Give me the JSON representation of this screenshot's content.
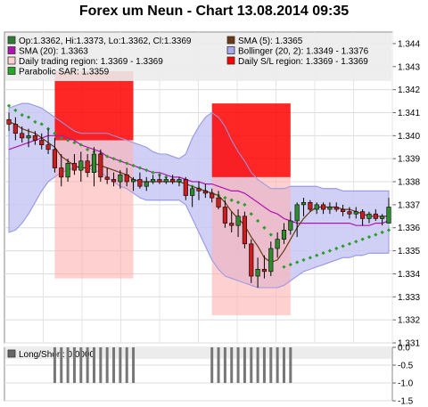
{
  "title": "Forex um Neun - Chart 13.08.2014 09:35",
  "legend": [
    {
      "label": "Op:1.3362, Hi:1.3373, Lo:1.3362, Cl:1.3369",
      "color": "#2e7d32",
      "type": "box"
    },
    {
      "label": "SMA (5): 1.3365",
      "color": "#6b3a14",
      "type": "box"
    },
    {
      "label": "SMA (20): 1.3363",
      "color": "#b014b0",
      "type": "box"
    },
    {
      "label": "Bollinger (20, 2): 1.3349 - 1.3376",
      "color": "#aaaaee",
      "type": "box"
    },
    {
      "label": "Daily trading region: 1.3369 - 1.3369",
      "color": "#ffd0d0",
      "type": "box"
    },
    {
      "label": "Daily S/L region: 1.3369 - 1.3369",
      "color": "#ff0000",
      "type": "box"
    },
    {
      "label": "Parabolic SAR: 1.3359",
      "color": "#22aa22",
      "type": "box"
    }
  ],
  "sub_legend": {
    "label": "Long/Short: 0.0000",
    "color": "#666666"
  },
  "chart_data": [
    {
      "type": "candlestick",
      "title": "Forex um Neun - Chart 13.08.2014 09:35",
      "ylim": [
        1.331,
        1.3445
      ],
      "yticks": [
        "1.344",
        "1.343",
        "1.342",
        "1.341",
        "1.340",
        "1.339",
        "1.338",
        "1.337",
        "1.336",
        "1.335",
        "1.334",
        "1.333",
        "1.332",
        "1.331"
      ],
      "ohlc": [
        [
          1.3407,
          1.341,
          1.3402,
          1.3405
        ],
        [
          1.3405,
          1.3408,
          1.3398,
          1.3401
        ],
        [
          1.3401,
          1.3404,
          1.3397,
          1.3399
        ],
        [
          1.3399,
          1.3403,
          1.3395,
          1.34
        ],
        [
          1.34,
          1.3402,
          1.3396,
          1.3398
        ],
        [
          1.3398,
          1.3401,
          1.3394,
          1.3396
        ],
        [
          1.3396,
          1.3403,
          1.3392,
          1.3394
        ],
        [
          1.3394,
          1.3399,
          1.3384,
          1.3386
        ],
        [
          1.3386,
          1.3392,
          1.3378,
          1.3382
        ],
        [
          1.3382,
          1.339,
          1.338,
          1.3388
        ],
        [
          1.3388,
          1.3392,
          1.3383,
          1.3385
        ],
        [
          1.3385,
          1.3393,
          1.338,
          1.3389
        ],
        [
          1.3389,
          1.3392,
          1.3382,
          1.3384
        ],
        [
          1.3384,
          1.3395,
          1.3378,
          1.3392
        ],
        [
          1.3392,
          1.3394,
          1.338,
          1.3382
        ],
        [
          1.3382,
          1.3386,
          1.3379,
          1.3381
        ],
        [
          1.3381,
          1.3384,
          1.3378,
          1.338
        ],
        [
          1.338,
          1.3385,
          1.3377,
          1.3383
        ],
        [
          1.3383,
          1.3386,
          1.3378,
          1.338
        ],
        [
          1.338,
          1.3382,
          1.3376,
          1.3381
        ],
        [
          1.3381,
          1.3384,
          1.3377,
          1.3378
        ],
        [
          1.3378,
          1.3382,
          1.3376,
          1.338
        ],
        [
          1.338,
          1.3383,
          1.3379,
          1.3381
        ],
        [
          1.3381,
          1.3383,
          1.3379,
          1.338
        ],
        [
          1.338,
          1.3382,
          1.3379,
          1.3381
        ],
        [
          1.3381,
          1.3383,
          1.3379,
          1.338
        ],
        [
          1.338,
          1.3382,
          1.3378,
          1.3381
        ],
        [
          1.3381,
          1.3382,
          1.3372,
          1.3374
        ],
        [
          1.3374,
          1.3378,
          1.3369,
          1.3377
        ],
        [
          1.3377,
          1.338,
          1.3372,
          1.3376
        ],
        [
          1.3376,
          1.3379,
          1.3373,
          1.3375
        ],
        [
          1.3375,
          1.3377,
          1.3371,
          1.3373
        ],
        [
          1.3373,
          1.3376,
          1.3368,
          1.3369
        ],
        [
          1.3369,
          1.3372,
          1.336,
          1.3362
        ],
        [
          1.3362,
          1.3367,
          1.3358,
          1.3361
        ],
        [
          1.3361,
          1.3368,
          1.3356,
          1.3365
        ],
        [
          1.3365,
          1.3367,
          1.3351,
          1.3353
        ],
        [
          1.3353,
          1.3355,
          1.3336,
          1.3339
        ],
        [
          1.3339,
          1.3347,
          1.3334,
          1.3342
        ],
        [
          1.3342,
          1.3348,
          1.3338,
          1.3341
        ],
        [
          1.3341,
          1.3354,
          1.3339,
          1.3351
        ],
        [
          1.3351,
          1.3358,
          1.3347,
          1.3355
        ],
        [
          1.3355,
          1.3362,
          1.3353,
          1.3359
        ],
        [
          1.3359,
          1.3367,
          1.3357,
          1.3363
        ],
        [
          1.3363,
          1.3371,
          1.3356,
          1.337
        ],
        [
          1.337,
          1.3373,
          1.3365,
          1.3371
        ],
        [
          1.3371,
          1.3372,
          1.3367,
          1.3368
        ],
        [
          1.3368,
          1.3371,
          1.3366,
          1.337
        ],
        [
          1.337,
          1.3371,
          1.3366,
          1.3368
        ],
        [
          1.3368,
          1.3371,
          1.3366,
          1.3369
        ],
        [
          1.3369,
          1.3371,
          1.3367,
          1.3368
        ],
        [
          1.3368,
          1.337,
          1.3365,
          1.3367
        ],
        [
          1.3367,
          1.3369,
          1.3364,
          1.3366
        ],
        [
          1.3366,
          1.3369,
          1.3364,
          1.3367
        ],
        [
          1.3367,
          1.3368,
          1.3361,
          1.3364
        ],
        [
          1.3364,
          1.3367,
          1.3362,
          1.3366
        ],
        [
          1.3366,
          1.3368,
          1.3363,
          1.3364
        ],
        [
          1.3364,
          1.3366,
          1.3361,
          1.3365
        ],
        [
          1.3362,
          1.3373,
          1.3362,
          1.3369
        ]
      ],
      "sma5": [
        1.3406,
        1.3405,
        1.3403,
        1.3402,
        1.3401,
        1.3399,
        1.3397,
        1.3395,
        1.3391,
        1.3389,
        1.3387,
        1.3386,
        1.3386,
        1.3388,
        1.3387,
        1.3386,
        1.3385,
        1.3384,
        1.3383,
        1.3381,
        1.338,
        1.338,
        1.338,
        1.338,
        1.338,
        1.338,
        1.338,
        1.3379,
        1.3378,
        1.3377,
        1.3376,
        1.3375,
        1.3374,
        1.3371,
        1.3367,
        1.3364,
        1.3361,
        1.3356,
        1.3352,
        1.3347,
        1.3345,
        1.3346,
        1.335,
        1.3355,
        1.336,
        1.3364,
        1.3367,
        1.3369,
        1.3369,
        1.3369,
        1.3369,
        1.3368,
        1.3368,
        1.3367,
        1.3366,
        1.3365,
        1.3365,
        1.3365,
        1.3365
      ],
      "sma20": [
        1.3394,
        1.3395,
        1.3396,
        1.3397,
        1.3398,
        1.3399,
        1.34,
        1.34,
        1.34,
        1.3399,
        1.3398,
        1.3396,
        1.3395,
        1.3394,
        1.3393,
        1.3391,
        1.339,
        1.3389,
        1.3388,
        1.3387,
        1.3386,
        1.3385,
        1.3384,
        1.3384,
        1.3383,
        1.3382,
        1.3382,
        1.3381,
        1.338,
        1.338,
        1.3379,
        1.3379,
        1.3378,
        1.3377,
        1.3376,
        1.3376,
        1.3375,
        1.3373,
        1.3371,
        1.3369,
        1.3367,
        1.3366,
        1.3364,
        1.3363,
        1.3362,
        1.3362,
        1.3362,
        1.3362,
        1.3362,
        1.3362,
        1.3362,
        1.3362,
        1.3362,
        1.3361,
        1.3361,
        1.3361,
        1.3362,
        1.3362,
        1.3363
      ],
      "boll_upper": [
        1.3412,
        1.3413,
        1.3414,
        1.3414,
        1.3413,
        1.3412,
        1.341,
        1.3408,
        1.3406,
        1.3404,
        1.3402,
        1.3401,
        1.3401,
        1.3401,
        1.3401,
        1.3401,
        1.34,
        1.3399,
        1.3398,
        1.3397,
        1.3396,
        1.3395,
        1.3393,
        1.3392,
        1.3392,
        1.3391,
        1.339,
        1.3392,
        1.3399,
        1.3404,
        1.3408,
        1.341,
        1.3408,
        1.3404,
        1.3398,
        1.3393,
        1.3389,
        1.3384,
        1.3381,
        1.3379,
        1.3377,
        1.3377,
        1.3377,
        1.3378,
        1.3378,
        1.3378,
        1.3378,
        1.3378,
        1.3377,
        1.3377,
        1.3377,
        1.3376,
        1.3376,
        1.3376,
        1.3376,
        1.3376,
        1.3376,
        1.3376,
        1.3376
      ],
      "boll_lower": [
        1.3358,
        1.3359,
        1.3362,
        1.3366,
        1.3371,
        1.3376,
        1.338,
        1.3382,
        1.3384,
        1.3385,
        1.3386,
        1.3386,
        1.3386,
        1.3385,
        1.3384,
        1.3382,
        1.338,
        1.3378,
        1.3377,
        1.3375,
        1.3373,
        1.3372,
        1.3372,
        1.3372,
        1.3372,
        1.3372,
        1.3372,
        1.337,
        1.3364,
        1.3358,
        1.3352,
        1.3346,
        1.3342,
        1.3339,
        1.3338,
        1.3337,
        1.3336,
        1.3335,
        1.3334,
        1.3334,
        1.3334,
        1.3334,
        1.3335,
        1.3337,
        1.3339,
        1.3341,
        1.3342,
        1.3343,
        1.3344,
        1.3345,
        1.3346,
        1.3347,
        1.3347,
        1.3348,
        1.3348,
        1.3349,
        1.3349,
        1.3349,
        1.3349
      ],
      "sar_dots": [
        [
          0,
          1.3413
        ],
        [
          1,
          1.3411
        ],
        [
          2,
          1.3409
        ],
        [
          3,
          1.3408
        ],
        [
          4,
          1.3406
        ],
        [
          5,
          1.3405
        ],
        [
          6,
          1.3403
        ],
        [
          7,
          1.3401
        ],
        [
          8,
          1.3399
        ],
        [
          9,
          1.3398
        ],
        [
          10,
          1.3397
        ],
        [
          11,
          1.3396
        ],
        [
          12,
          1.3394
        ],
        [
          13,
          1.3393
        ],
        [
          14,
          1.3392
        ],
        [
          15,
          1.3391
        ],
        [
          16,
          1.339
        ],
        [
          17,
          1.3389
        ],
        [
          18,
          1.3388
        ],
        [
          19,
          1.3387
        ],
        [
          20,
          1.3386
        ],
        [
          21,
          1.3385
        ],
        [
          22,
          1.3384
        ],
        [
          23,
          1.3383
        ],
        [
          24,
          1.3382
        ],
        [
          25,
          1.3381
        ],
        [
          26,
          1.338
        ],
        [
          27,
          1.3379
        ],
        [
          28,
          1.3378
        ],
        [
          29,
          1.3377
        ],
        [
          30,
          1.3376
        ],
        [
          31,
          1.3375
        ],
        [
          32,
          1.3374
        ],
        [
          33,
          1.3373
        ],
        [
          34,
          1.3372
        ],
        [
          35,
          1.3371
        ],
        [
          36,
          1.337
        ],
        [
          37,
          1.3366
        ],
        [
          38,
          1.3363
        ],
        [
          39,
          1.336
        ],
        [
          40,
          1.3357
        ],
        [
          41,
          1.3354
        ],
        [
          42,
          1.3343
        ],
        [
          43,
          1.3344
        ],
        [
          44,
          1.3345
        ],
        [
          45,
          1.3346
        ],
        [
          46,
          1.3347
        ],
        [
          47,
          1.3348
        ],
        [
          48,
          1.3349
        ],
        [
          49,
          1.335
        ],
        [
          50,
          1.3351
        ],
        [
          51,
          1.3352
        ],
        [
          52,
          1.3353
        ],
        [
          53,
          1.3354
        ],
        [
          54,
          1.3355
        ],
        [
          55,
          1.3356
        ],
        [
          56,
          1.3357
        ],
        [
          57,
          1.3358
        ],
        [
          58,
          1.3359
        ]
      ],
      "trading_regions": [
        {
          "from": 7,
          "to": 19,
          "low": 1.3338,
          "high": 1.3398
        },
        {
          "from": 31,
          "to": 43,
          "low": 1.3322,
          "high": 1.3382
        }
      ],
      "sl_regions": [
        {
          "from": 7,
          "to": 19,
          "low": 1.3398,
          "high": 1.3428
        },
        {
          "from": 31,
          "to": 43,
          "low": 1.3382,
          "high": 1.3414
        }
      ]
    },
    {
      "type": "bar",
      "title": "",
      "ylim": [
        -1.5,
        0.0
      ],
      "yticks": [
        "0.0",
        "-0.5",
        "-1.0",
        "-1.5"
      ],
      "bars": {
        "ranges": [
          [
            7,
            19
          ],
          [
            31,
            43
          ]
        ],
        "value": -1.0
      }
    }
  ]
}
